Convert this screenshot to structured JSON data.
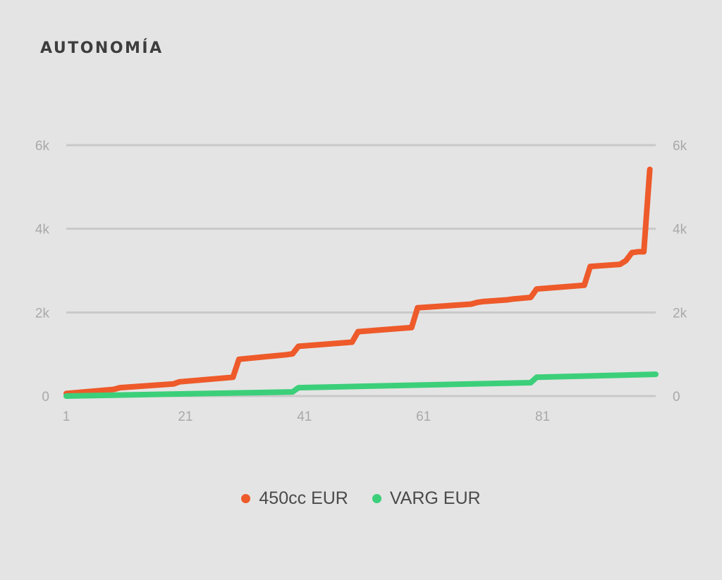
{
  "title": "AUTONOMÍA",
  "chart_data": {
    "type": "line",
    "title": "AUTONOMÍA",
    "xlabel": "",
    "ylabel": "",
    "x_tick_labels": [
      "1",
      "21",
      "41",
      "61",
      "81"
    ],
    "y_tick_labels": [
      "0",
      "2k",
      "4k",
      "6k"
    ],
    "xlim": [
      1,
      100
    ],
    "ylim": [
      0,
      6000
    ],
    "grid": true,
    "legend_position": "bottom",
    "series": [
      {
        "name": "450cc EUR",
        "color": "#ee5a2a",
        "points": [
          [
            1,
            60
          ],
          [
            9,
            160
          ],
          [
            10,
            200
          ],
          [
            19,
            290
          ],
          [
            20,
            340
          ],
          [
            29,
            450
          ],
          [
            30,
            880
          ],
          [
            38,
            990
          ],
          [
            39,
            1010
          ],
          [
            40,
            1190
          ],
          [
            49,
            1290
          ],
          [
            50,
            1540
          ],
          [
            59,
            1640
          ],
          [
            60,
            2110
          ],
          [
            69,
            2200
          ],
          [
            70,
            2240
          ],
          [
            71,
            2260
          ],
          [
            75,
            2300
          ],
          [
            76,
            2320
          ],
          [
            79,
            2360
          ],
          [
            80,
            2560
          ],
          [
            88,
            2650
          ],
          [
            89,
            3100
          ],
          [
            94,
            3150
          ],
          [
            95,
            3240
          ],
          [
            96,
            3430
          ],
          [
            97,
            3450
          ],
          [
            98,
            3450
          ],
          [
            99,
            5420
          ]
        ]
      },
      {
        "name": "VARG EUR",
        "color": "#3ccf7a",
        "points": [
          [
            1,
            0
          ],
          [
            39,
            100
          ],
          [
            40,
            200
          ],
          [
            79,
            320
          ],
          [
            80,
            450
          ],
          [
            100,
            520
          ]
        ]
      }
    ]
  }
}
